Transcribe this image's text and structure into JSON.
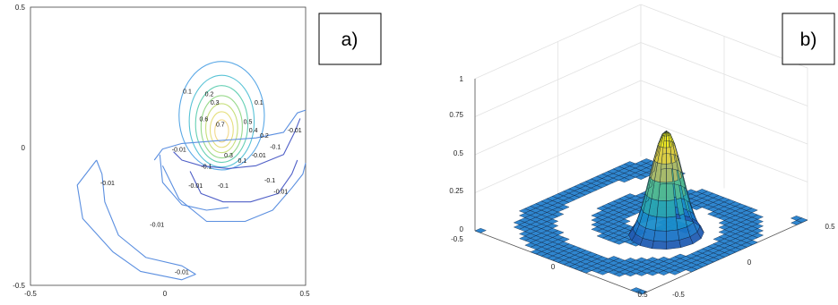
{
  "chart_data": [
    {
      "type": "contour",
      "panel_label": "a)",
      "xlim": [
        -0.5,
        0.5
      ],
      "ylim": [
        -0.5,
        0.5
      ],
      "xticks": [
        "-0.5",
        "0",
        "0.5"
      ],
      "yticks": [
        "0.5",
        "0",
        "-0.5"
      ],
      "grid": false,
      "levels": [
        {
          "value": "0.1",
          "color": "#5aa8e6"
        },
        {
          "value": "0.2",
          "color": "#59c3d6"
        },
        {
          "value": "0.3",
          "color": "#66d0b4"
        },
        {
          "value": "0.4",
          "color": "#98d98b"
        },
        {
          "value": "0.5",
          "color": "#c6df7c"
        },
        {
          "value": "0.6",
          "color": "#e6df7d"
        },
        {
          "value": "0.7",
          "color": "#f2d98a"
        },
        {
          "value": "-0.01",
          "color": "#5b8fe0"
        },
        {
          "value": "-0.1",
          "color": "#4f5fc7"
        }
      ],
      "peak": {
        "x": 0.2,
        "y": 0.05,
        "value": 0.73
      }
    },
    {
      "type": "surface",
      "panel_label": "b)",
      "xlim": [
        -0.5,
        0.5
      ],
      "ylim": [
        -0.5,
        0.5
      ],
      "zlim": [
        0,
        1
      ],
      "zticks": [
        "1",
        "0.75",
        "0.5",
        "0.25",
        "0"
      ],
      "xticks": [
        "-0.5",
        "0",
        "0.5"
      ],
      "yticks": [
        "0.5",
        "0",
        "-0.5"
      ],
      "grid": true,
      "colormap": "parula",
      "peak": {
        "x": 0.2,
        "y": 0.05,
        "z": 0.73
      }
    }
  ],
  "colors": {
    "axis": "#444444",
    "grid": "#e2e2e2",
    "surface_floor": "#2f86cf",
    "mesh": "#0b1a33"
  }
}
